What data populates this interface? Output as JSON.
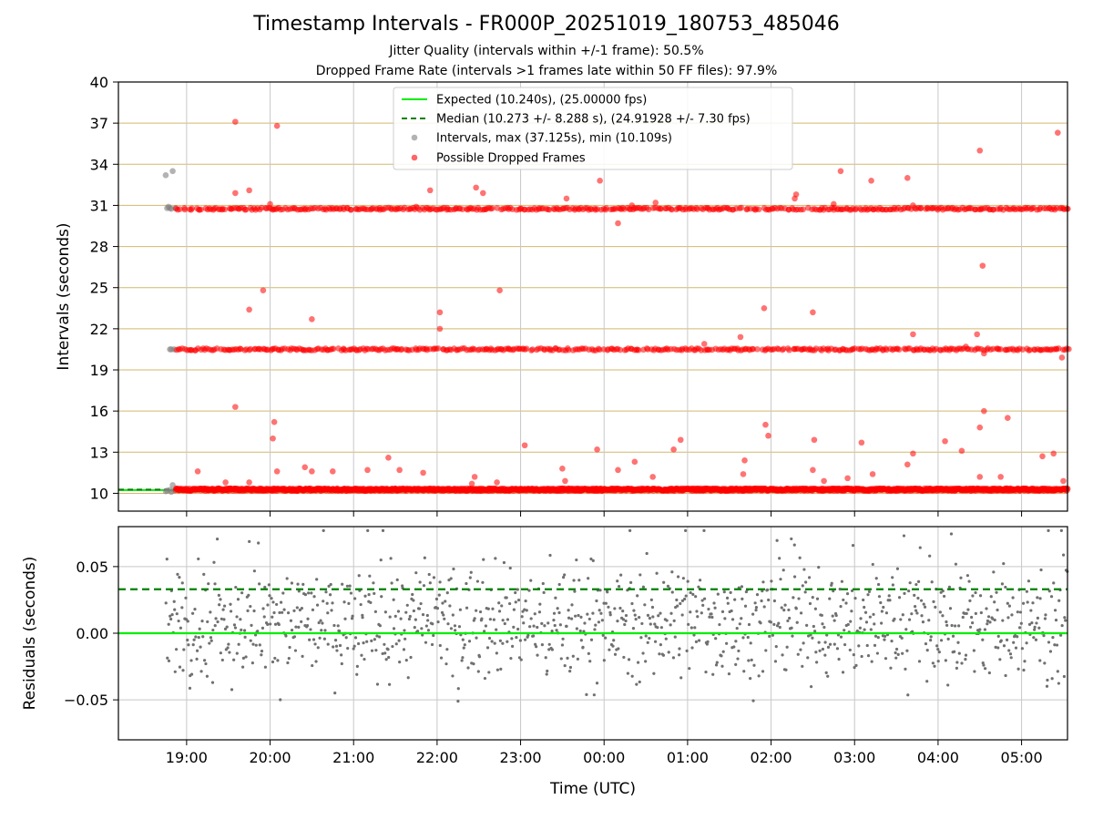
{
  "title": "Timestamp Intervals - FR000P_20251019_180753_485046",
  "subtitle1": "Jitter Quality (intervals within +/-1 frame): 50.5%",
  "subtitle2": "Dropped Frame Rate (intervals >1 frames late within 50 FF files): 97.9%",
  "colors": {
    "expected": "#00ee00",
    "median": "#008000",
    "intervals": "#808080",
    "dropped": "#ff0000",
    "hgrid_top": "#d2b96e",
    "grid": "#c8c8c8",
    "residual_points": "#707070"
  },
  "chart_data": [
    {
      "type": "scatter",
      "ylabel": "Intervals (seconds)",
      "xlabel": "",
      "ylim": [
        8.7,
        40
      ],
      "y_ticks": [
        "10",
        "13",
        "16",
        "19",
        "22",
        "25",
        "28",
        "31",
        "34",
        "37",
        "40"
      ],
      "x_tick_labels_visible": false,
      "grid": true,
      "legend_position": "top-center",
      "legend": [
        "Expected (10.240s), (25.00000 fps)",
        "Median (10.273 +/- 8.288 s), (24.91928 +/- 7.30 fps)",
        "Intervals, max (37.125s), min (10.109s)",
        "Possible Dropped Frames"
      ],
      "expected_interval": 10.24,
      "median_interval": 10.273,
      "normal_intervals": [
        [
          "18:45",
          10.15
        ],
        [
          "18:46",
          10.2
        ],
        [
          "18:48",
          10.25
        ],
        [
          "18:49",
          10.1
        ],
        [
          "18:50",
          10.6
        ],
        [
          "18:51",
          10.2
        ],
        [
          "18:45",
          33.2
        ],
        [
          "18:50",
          33.5
        ],
        [
          "18:46",
          30.8
        ],
        [
          "18:47",
          30.9
        ],
        [
          "18:48",
          30.8
        ],
        [
          "18:49",
          30.75
        ],
        [
          "18:52",
          30.8
        ],
        [
          "18:48",
          20.5
        ],
        [
          "18:49",
          20.5
        ],
        [
          "18:51",
          20.5
        ]
      ],
      "dropped_outliers": [
        [
          "19:35",
          37.1
        ],
        [
          "20:05",
          36.8
        ],
        [
          "19:35",
          31.9
        ],
        [
          "19:45",
          32.1
        ],
        [
          "20:00",
          31.1
        ],
        [
          "19:45",
          23.4
        ],
        [
          "19:55",
          24.8
        ],
        [
          "20:30",
          22.7
        ],
        [
          "19:35",
          16.3
        ],
        [
          "20:03",
          15.2
        ],
        [
          "20:02",
          14.0
        ],
        [
          "20:05",
          11.6
        ],
        [
          "19:08",
          11.6
        ],
        [
          "19:28",
          10.8
        ],
        [
          "19:45",
          10.8
        ],
        [
          "20:25",
          11.9
        ],
        [
          "20:30",
          11.6
        ],
        [
          "20:45",
          11.6
        ],
        [
          "21:10",
          11.7
        ],
        [
          "21:25",
          12.6
        ],
        [
          "21:33",
          11.7
        ],
        [
          "21:50",
          11.5
        ],
        [
          "21:45",
          30.9
        ],
        [
          "21:55",
          32.1
        ],
        [
          "22:02",
          23.2
        ],
        [
          "22:02",
          22.0
        ],
        [
          "22:28",
          32.3
        ],
        [
          "22:33",
          31.9
        ],
        [
          "22:45",
          24.8
        ],
        [
          "22:25",
          10.7
        ],
        [
          "22:27",
          11.2
        ],
        [
          "22:43",
          10.8
        ],
        [
          "23:03",
          13.5
        ],
        [
          "23:30",
          11.8
        ],
        [
          "23:32",
          10.9
        ],
        [
          "23:33",
          31.5
        ],
        [
          "23:55",
          13.2
        ],
        [
          "23:57",
          32.8
        ],
        [
          "00:10",
          29.7
        ],
        [
          "00:20",
          31.0
        ],
        [
          "00:10",
          11.7
        ],
        [
          "00:22",
          12.3
        ],
        [
          "00:35",
          11.2
        ],
        [
          "00:37",
          31.2
        ],
        [
          "00:50",
          13.2
        ],
        [
          "00:55",
          13.9
        ],
        [
          "01:12",
          20.9
        ],
        [
          "01:38",
          21.4
        ],
        [
          "01:40",
          11.4
        ],
        [
          "01:41",
          12.4
        ],
        [
          "01:55",
          23.5
        ],
        [
          "01:56",
          15.0
        ],
        [
          "01:58",
          14.2
        ],
        [
          "02:17",
          31.5
        ],
        [
          "02:18",
          31.8
        ],
        [
          "02:30",
          23.2
        ],
        [
          "02:31",
          13.9
        ],
        [
          "02:30",
          11.7
        ],
        [
          "02:38",
          10.9
        ],
        [
          "02:45",
          31.1
        ],
        [
          "02:50",
          33.5
        ],
        [
          "02:55",
          11.1
        ],
        [
          "03:05",
          13.7
        ],
        [
          "03:12",
          32.8
        ],
        [
          "03:13",
          11.4
        ],
        [
          "03:38",
          33.0
        ],
        [
          "03:38",
          12.1
        ],
        [
          "03:42",
          31.0
        ],
        [
          "03:42",
          21.6
        ],
        [
          "03:42",
          12.9
        ],
        [
          "04:05",
          13.8
        ],
        [
          "04:17",
          13.1
        ],
        [
          "04:20",
          20.7
        ],
        [
          "04:28",
          21.6
        ],
        [
          "04:30",
          35.0
        ],
        [
          "04:32",
          26.6
        ],
        [
          "04:30",
          14.8
        ],
        [
          "04:33",
          16.0
        ],
        [
          "04:30",
          11.2
        ],
        [
          "04:33",
          20.2
        ],
        [
          "04:45",
          11.2
        ],
        [
          "04:50",
          15.5
        ],
        [
          "05:15",
          12.7
        ],
        [
          "05:23",
          12.9
        ],
        [
          "05:26",
          36.3
        ],
        [
          "05:29",
          19.9
        ],
        [
          "05:30",
          10.9
        ]
      ]
    },
    {
      "type": "scatter",
      "ylabel": "Residuals (seconds)",
      "xlabel": "Time (UTC)",
      "ylim": [
        -0.08,
        0.08
      ],
      "y_ticks": [
        "−0.05",
        "0.00",
        "0.05"
      ],
      "x_ticks": [
        "19:00",
        "20:00",
        "21:00",
        "22:00",
        "23:00",
        "00:00",
        "01:00",
        "02:00",
        "03:00",
        "04:00",
        "05:00"
      ],
      "x_range": [
        "18:11",
        "05:33"
      ],
      "grid": true,
      "expected_residual": 0.0,
      "median_residual": 0.033,
      "residual_range": [
        -0.077,
        0.077
      ],
      "point_count": 1150
    }
  ]
}
